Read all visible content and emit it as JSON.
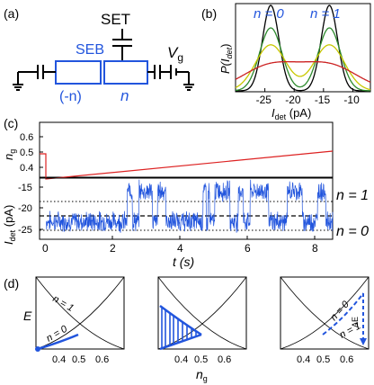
{
  "panels": {
    "a": {
      "label": "(a)",
      "set_label": "SET",
      "seb_label": "SEB",
      "left_island_label": "(-n)",
      "right_island_label": "n",
      "vg_label": "V",
      "vg_sub": "g",
      "colors": {
        "blue": "#2255dd",
        "black": "#000000"
      }
    },
    "b": {
      "label": "(b)",
      "ylabel_main": "P(I",
      "ylabel_sub": "det",
      "ylabel_close": ")",
      "xlabel_main": "I",
      "xlabel_sub": "det",
      "xlabel_unit": " (pA)",
      "n0_label": "n = 0",
      "n1_label": "n = 1",
      "x_ticks": [
        -25,
        -20,
        -15,
        -10
      ],
      "xlim": [
        -30,
        -7
      ]
    },
    "c": {
      "label": "(c)",
      "ng_ylabel": "n",
      "ng_ylabel_sub": "g",
      "ng_ticks": [
        "0.6",
        "0.5",
        "0.4"
      ],
      "idet_ylabel": "I",
      "idet_ylabel_sub": "det",
      "idet_unit": " (pA)",
      "idet_ticks": [
        "-15",
        "-20",
        "-25"
      ],
      "t_ticks": [
        "0",
        "2",
        "4",
        "6",
        "8"
      ],
      "xlabel": "t (s)",
      "n1_label": "n = 1",
      "n0_label": "n = 0"
    },
    "d": {
      "label": "(d)",
      "ylabel": "E",
      "xlabel_main": "n",
      "xlabel_sub": "g",
      "x_ticks": [
        "0.4",
        "0.5",
        "0.6"
      ],
      "n1_label": "n = 1",
      "n0_label": "n = 0",
      "delta_e": "ΔE"
    }
  },
  "chart_data": [
    {
      "type": "line",
      "panel": "b",
      "xlabel": "I_det (pA)",
      "ylabel": "P(I_det)",
      "series": [
        {
          "color": "#000000",
          "peaks": [
            -24,
            -14
          ],
          "width": 1.4
        },
        {
          "color": "#2e8b2e",
          "peaks": [
            -24,
            -14
          ],
          "width": 1.9
        },
        {
          "color": "#c8c800",
          "peaks": [
            -24,
            -14
          ],
          "width": 2.6
        },
        {
          "color": "#cc2222",
          "peaks": [
            -24,
            -14
          ],
          "width": 4.8
        }
      ]
    },
    {
      "type": "line",
      "panel": "c-top",
      "xlabel": "t (s)",
      "ylabel": "n_g",
      "ylim": [
        0.3,
        0.65
      ],
      "series": [
        {
          "color": "#dd2222",
          "x": [
            0,
            0.2,
            0.2,
            8.5
          ],
          "y": [
            0.5,
            0.5,
            0.35,
            0.5
          ]
        }
      ]
    },
    {
      "type": "line",
      "panel": "c-bottom",
      "xlabel": "t (s)",
      "ylabel": "I_det (pA)",
      "ylim": [
        -26,
        -14
      ],
      "levels": {
        "n1": -16.5,
        "mid": -19.5,
        "n0": -22.5
      },
      "switching_intervals_n1": [
        [
          2.6,
          2.75
        ],
        [
          2.95,
          3.35
        ],
        [
          3.5,
          3.75
        ],
        [
          4.85,
          4.95
        ],
        [
          5.0,
          5.05
        ],
        [
          5.2,
          5.65
        ],
        [
          5.9,
          6.05
        ],
        [
          6.25,
          6.8
        ],
        [
          7.35,
          7.8
        ],
        [
          8.25,
          8.5
        ]
      ]
    }
  ]
}
